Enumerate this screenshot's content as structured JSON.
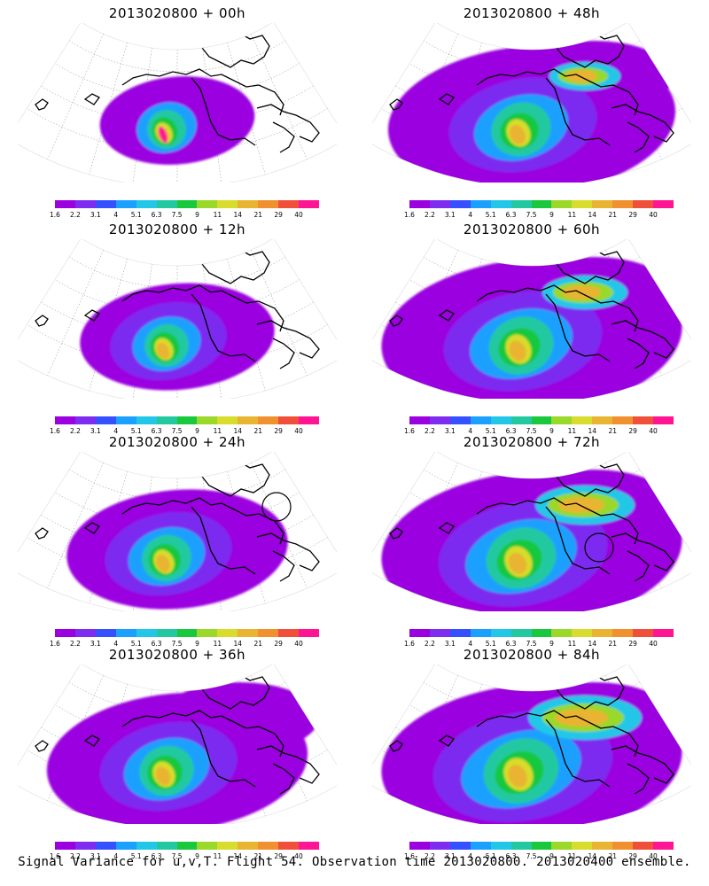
{
  "colorbar": {
    "labels": [
      "1.6",
      "2.2",
      "3.1",
      "4",
      "5.1",
      "6.3",
      "7.5",
      "9",
      "11",
      "14",
      "21",
      "29",
      "40"
    ],
    "colors": [
      "#9a00e0",
      "#7d2cf0",
      "#3550ff",
      "#1aa0ff",
      "#22c7e8",
      "#22c9a0",
      "#19c83c",
      "#9ad82a",
      "#d8dc2c",
      "#e8b432",
      "#f0902e",
      "#f0503a",
      "#ff1493"
    ]
  },
  "panels": [
    {
      "title": "2013020800 + 00h",
      "stage": 0,
      "circle": null
    },
    {
      "title": "2013020800 + 48h",
      "stage": 4,
      "circle": null
    },
    {
      "title": "2013020800 + 12h",
      "stage": 1,
      "circle": null
    },
    {
      "title": "2013020800 + 60h",
      "stage": 5,
      "circle": null
    },
    {
      "title": "2013020800 + 24h",
      "stage": 2,
      "circle": "east"
    },
    {
      "title": "2013020800 + 72h",
      "stage": 6,
      "circle": "southeast"
    },
    {
      "title": "2013020800 + 36h",
      "stage": 3,
      "circle": null
    },
    {
      "title": "2013020800 + 84h",
      "stage": 7,
      "circle": null
    }
  ],
  "caption": "Signal Variance for u,v,T. Flight 54. Observation time 2013020800. 2013020400 ensemble."
}
